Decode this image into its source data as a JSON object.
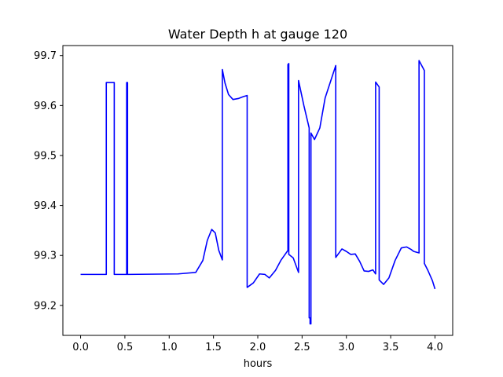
{
  "chart_data": {
    "type": "line",
    "title": "Water Depth h at gauge 120",
    "xlabel": "hours",
    "ylabel": "",
    "xlim": [
      -0.2,
      4.2
    ],
    "ylim": [
      99.14,
      99.72
    ],
    "xticks": [
      0.0,
      0.5,
      1.0,
      1.5,
      2.0,
      2.5,
      3.0,
      3.5,
      4.0
    ],
    "xtick_labels": [
      "0.0",
      "0.5",
      "1.0",
      "1.5",
      "2.0",
      "2.5",
      "3.0",
      "3.5",
      "4.0"
    ],
    "yticks": [
      99.2,
      99.3,
      99.4,
      99.5,
      99.6,
      99.7
    ],
    "ytick_labels": [
      "99.2",
      "99.3",
      "99.4",
      "99.5",
      "99.6",
      "99.7"
    ],
    "grid": false,
    "legend": "none",
    "color": "#0000ff",
    "series": [
      {
        "x": [
          0.0,
          0.29,
          0.29,
          0.38,
          0.38,
          0.52,
          0.52,
          0.53,
          0.53,
          0.54,
          0.54,
          1.1,
          1.3,
          1.38,
          1.43,
          1.48,
          1.52,
          1.56,
          1.6,
          1.6,
          1.63,
          1.67,
          1.72,
          1.78,
          1.84,
          1.88,
          1.88,
          1.95,
          2.02,
          2.08,
          2.13,
          2.2,
          2.26,
          2.3,
          2.34,
          2.34,
          2.35,
          2.35,
          2.4,
          2.46,
          2.46,
          2.52,
          2.58,
          2.58,
          2.59,
          2.59,
          2.6,
          2.6,
          2.64,
          2.7,
          2.76,
          2.88,
          2.88,
          2.95,
          3.0,
          3.05,
          3.1,
          3.15,
          3.2,
          3.25,
          3.3,
          3.33,
          3.33,
          3.37,
          3.37,
          3.42,
          3.48,
          3.55,
          3.62,
          3.68,
          3.73,
          3.76,
          3.8,
          3.82,
          3.82,
          3.88,
          3.88,
          3.92,
          3.97,
          4.0
        ],
        "y": [
          99.262,
          99.262,
          99.646,
          99.646,
          99.262,
          99.262,
          99.646,
          99.646,
          99.262,
          99.262,
          99.262,
          99.263,
          99.266,
          99.29,
          99.33,
          99.352,
          99.345,
          99.31,
          99.291,
          99.672,
          99.645,
          99.622,
          99.612,
          99.614,
          99.618,
          99.62,
          99.236,
          99.245,
          99.263,
          99.262,
          99.255,
          99.27,
          99.29,
          99.3,
          99.31,
          99.682,
          99.684,
          99.302,
          99.295,
          99.266,
          99.65,
          99.6,
          99.555,
          99.175,
          99.175,
          99.163,
          99.163,
          99.545,
          99.532,
          99.555,
          99.615,
          99.68,
          99.296,
          99.313,
          99.308,
          99.302,
          99.303,
          99.288,
          99.269,
          99.268,
          99.271,
          99.263,
          99.647,
          99.637,
          99.251,
          99.242,
          99.255,
          99.29,
          99.315,
          99.317,
          99.312,
          99.308,
          99.306,
          99.305,
          99.69,
          99.67,
          99.284,
          99.27,
          99.25,
          99.233
        ]
      }
    ]
  }
}
